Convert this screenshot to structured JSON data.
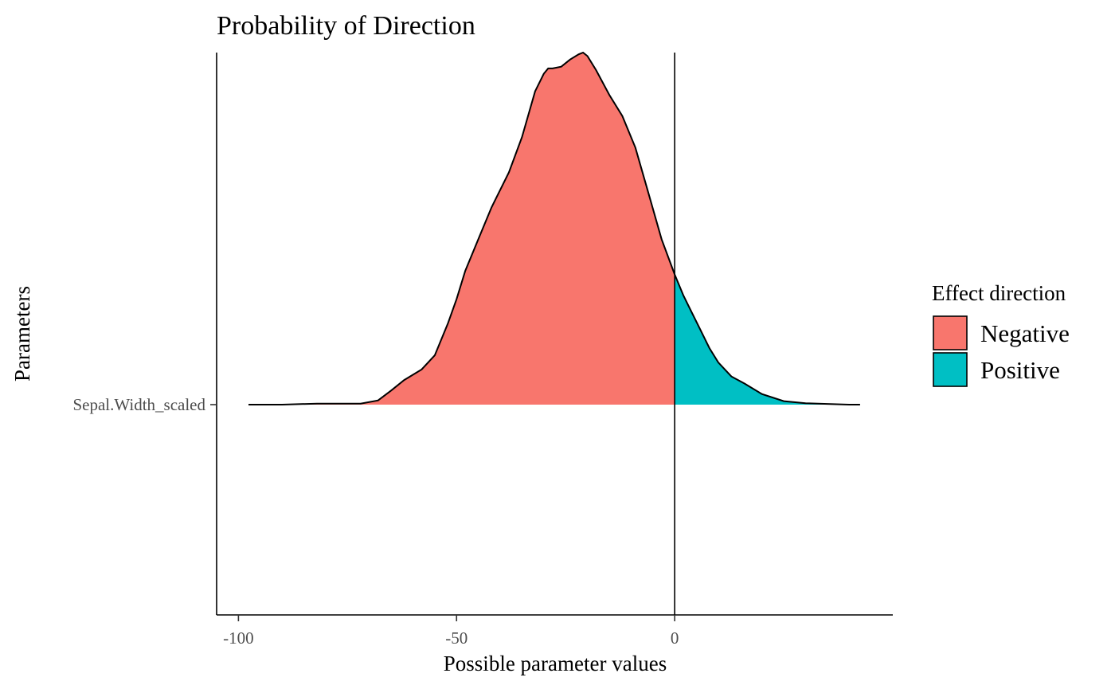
{
  "chart_data": {
    "type": "area",
    "title": "Probability of Direction",
    "xlabel": "Possible parameter values",
    "ylabel": "Parameters",
    "xlim": [
      -105,
      50
    ],
    "x_ticks": [
      -100,
      -50,
      0
    ],
    "x_tick_labels": [
      "-100",
      "-50",
      "0"
    ],
    "y_categories": [
      "Sepal.Width_scaled"
    ],
    "vline_x": 0,
    "grid": false,
    "legend": {
      "title": "Effect direction",
      "position": "right",
      "entries": [
        {
          "label": "Negative",
          "color": "#F8766D"
        },
        {
          "label": "Positive",
          "color": "#00BFC4"
        }
      ]
    },
    "series": [
      {
        "parameter": "Sepal.Width_scaled",
        "x": [
          -97.7,
          -90,
          -82,
          -78,
          -72,
          -68,
          -65,
          -62,
          -58,
          -55,
          -52,
          -50,
          -48,
          -45,
          -42,
          -38,
          -35,
          -32,
          -30,
          -29,
          -28,
          -26,
          -24,
          -22,
          -21,
          -20,
          -18,
          -15,
          -12,
          -9,
          -6,
          -3,
          0,
          2,
          4,
          6,
          8,
          10,
          13,
          16,
          20,
          25,
          30,
          35,
          40,
          42.5
        ],
        "density": [
          0.0,
          0.0,
          0.003,
          0.003,
          0.003,
          0.012,
          0.04,
          0.07,
          0.1,
          0.14,
          0.23,
          0.3,
          0.38,
          0.47,
          0.56,
          0.66,
          0.76,
          0.89,
          0.94,
          0.955,
          0.955,
          0.96,
          0.98,
          0.995,
          1.0,
          0.99,
          0.95,
          0.88,
          0.82,
          0.73,
          0.6,
          0.47,
          0.37,
          0.31,
          0.26,
          0.21,
          0.16,
          0.12,
          0.08,
          0.06,
          0.03,
          0.01,
          0.004,
          0.002,
          0.0,
          0.0
        ]
      }
    ]
  }
}
